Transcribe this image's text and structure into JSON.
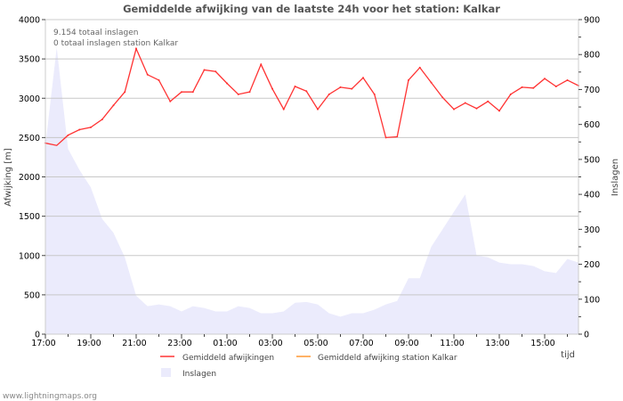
{
  "chart_data": {
    "type": "line",
    "title": "Gemiddelde afwijking van de laatste 24h voor het station: Kalkar",
    "xlabel": "tijd",
    "ylabel": "Afwijking  [m]",
    "y2label": "Inslagen",
    "ylim": [
      0,
      4000
    ],
    "y2lim": [
      0,
      900
    ],
    "yticks": [
      "0",
      "500",
      "1000",
      "1500",
      "2000",
      "2500",
      "3000",
      "3500",
      "4000"
    ],
    "y2ticks": [
      "0",
      "100",
      "200",
      "300",
      "400",
      "500",
      "600",
      "700",
      "800",
      "900"
    ],
    "xticks": [
      "17:00",
      "19:00",
      "21:00",
      "23:00",
      "01:00",
      "03:00",
      "05:00",
      "07:00",
      "09:00",
      "11:00",
      "13:00",
      "15:00"
    ],
    "annotations": [
      "9.154 totaal inslagen",
      "0 totaal inslagen station Kalkar"
    ],
    "grid": true,
    "legend": [
      "Gemiddeld afwijkingen",
      "Gemiddeld afwijking station Kalkar",
      "Inslagen"
    ],
    "colors": {
      "deviation": "#ff3333",
      "station": "#ff9933",
      "strikes": "#ebebfc"
    },
    "series": [
      {
        "name": "Gemiddeld afwijkingen",
        "axis": "left",
        "values": [
          2430,
          2400,
          2530,
          2600,
          2630,
          2730,
          2910,
          3080,
          3630,
          3300,
          3230,
          2960,
          3080,
          3080,
          3360,
          3340,
          3190,
          3050,
          3080,
          3430,
          3120,
          2860,
          3150,
          3090,
          2860,
          3050,
          3140,
          3120,
          3260,
          3050,
          2500,
          2510,
          3230,
          3390,
          3200,
          3010,
          2860,
          2940,
          2870,
          2960,
          2840,
          3050,
          3140,
          3130,
          3250,
          3150,
          3230,
          3160
        ]
      },
      {
        "name": "Inslagen",
        "axis": "right",
        "values": [
          540,
          820,
          530,
          470,
          420,
          330,
          290,
          220,
          110,
          80,
          85,
          80,
          65,
          80,
          75,
          65,
          65,
          80,
          75,
          60,
          60,
          65,
          90,
          92,
          85,
          60,
          50,
          60,
          60,
          70,
          85,
          95,
          160,
          160,
          250,
          300,
          350,
          400,
          225,
          220,
          205,
          200,
          200,
          195,
          180,
          175,
          215,
          205
        ]
      }
    ]
  },
  "footer": "www.lightningmaps.org"
}
